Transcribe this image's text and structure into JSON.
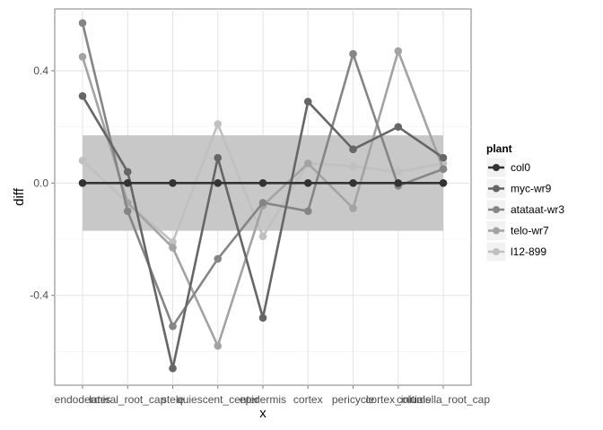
{
  "chart_data": {
    "type": "line",
    "xlabel": "x",
    "ylabel": "diff",
    "categories": [
      "endodermis",
      "lateral_root_cap",
      "stele",
      "quiescent_center",
      "epidermis",
      "cortex",
      "pericycle",
      "cortex_initials",
      "columella_root_cap"
    ],
    "ylim": [
      -0.72,
      0.62
    ],
    "yticks": [
      -0.4,
      0.0,
      0.4
    ],
    "ytick_labels": [
      "-0.4",
      "0.0",
      "0.4"
    ],
    "band": {
      "ymin": -0.17,
      "ymax": 0.17,
      "color": "#c8c8c8"
    },
    "grid": true,
    "legend": {
      "title": "plant",
      "position": "right"
    },
    "series": [
      {
        "name": "col0",
        "color": "#333333",
        "values": [
          0.0,
          0.0,
          0.0,
          0.0,
          0.0,
          0.0,
          0.0,
          0.0,
          0.0
        ]
      },
      {
        "name": "myc-wr9",
        "color": "#666666",
        "values": [
          0.31,
          0.04,
          -0.66,
          0.09,
          -0.48,
          0.29,
          0.12,
          0.2,
          0.09
        ]
      },
      {
        "name": "atataat-wr3",
        "color": "#858585",
        "values": [
          0.57,
          -0.1,
          -0.51,
          -0.27,
          -0.07,
          -0.1,
          0.46,
          -0.01,
          0.05
        ]
      },
      {
        "name": "telo-wr7",
        "color": "#a3a3a3",
        "values": [
          0.45,
          -0.07,
          -0.23,
          -0.58,
          -0.08,
          0.07,
          -0.09,
          0.47,
          0.05
        ]
      },
      {
        "name": "l12-899",
        "color": "#c0c0c0",
        "values": [
          0.08,
          -0.07,
          -0.21,
          0.21,
          -0.19,
          0.07,
          0.06,
          0.04,
          0.07
        ]
      }
    ]
  }
}
